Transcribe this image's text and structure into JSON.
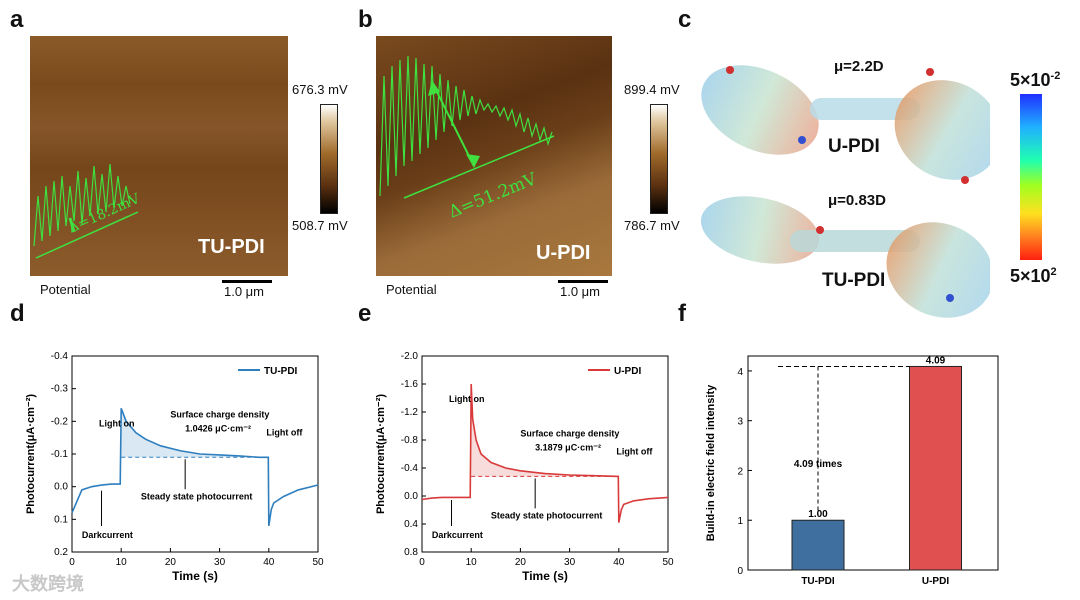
{
  "panels": {
    "a": "a",
    "b": "b",
    "c": "c",
    "d": "d",
    "e": "e",
    "f": "f"
  },
  "panel_a": {
    "sample": "TU-PDI",
    "delta": "Δ=18.2mV",
    "cbar_max": "676.3 mV",
    "cbar_min": "508.7 mV",
    "footer_left": "Potential",
    "scalebar": "1.0 μm",
    "colors": {
      "bg": "#7a4a1f",
      "dark": "#5a3412",
      "light": "#9a6a35"
    }
  },
  "panel_b": {
    "sample": "U-PDI",
    "delta": "Δ=51.2mV",
    "cbar_max": "899.4 mV",
    "cbar_min": "786.7 mV",
    "footer_left": "Potential",
    "scalebar": "1.0 μm"
  },
  "panel_c": {
    "top_dipole": "μ=2.2D",
    "top_name": "U-PDI",
    "bottom_dipole": "μ=0.83D",
    "bottom_name": "TU-PDI",
    "scale_top_base": "5×10",
    "scale_top_exp": "-2",
    "scale_bottom_base": "5×10",
    "scale_bottom_exp": "2"
  },
  "chart_data": [
    {
      "type": "line",
      "panel": "d",
      "legend": "TU-PDI",
      "color": "#2f7fbf",
      "xlabel": "Time (s)",
      "ylabel": "Photocurrent(μA·cm⁻²)",
      "xlim": [
        0,
        50
      ],
      "ylim": [
        0.2,
        -0.4
      ],
      "xticks": [
        "0",
        "10",
        "20",
        "30",
        "40",
        "50"
      ],
      "yticks": [
        "-0.4",
        "-0.3",
        "-0.2",
        "-0.1",
        "0.0",
        "0.1",
        "0.2"
      ],
      "x": [
        0,
        2,
        4,
        6,
        8,
        9.8,
        10,
        10.5,
        11,
        13,
        15,
        18,
        22,
        26,
        30,
        34,
        38,
        39.9,
        40,
        40.5,
        41,
        43,
        46,
        50
      ],
      "y": [
        0.08,
        0.01,
        0.0,
        -0.005,
        -0.008,
        -0.008,
        -0.24,
        -0.22,
        -0.2,
        -0.165,
        -0.145,
        -0.125,
        -0.11,
        -0.1,
        -0.097,
        -0.094,
        -0.09,
        -0.09,
        0.12,
        0.07,
        0.05,
        0.03,
        0.01,
        -0.005
      ],
      "annotations": {
        "light_on": "Light on",
        "light_off": "Light off",
        "surface": "Surface charge density",
        "surface_val": "1.0426 μC·cm⁻²",
        "steady": "Steady state photocurrent",
        "dark": "Darkcurrent"
      }
    },
    {
      "type": "line",
      "panel": "e",
      "legend": "U-PDI",
      "color": "#d83a3a",
      "xlabel": "Time (s)",
      "ylabel": "Photocurrent(μA·cm⁻²)",
      "xlim": [
        0,
        50
      ],
      "ylim": [
        0.8,
        -2.0
      ],
      "xticks": [
        "0",
        "10",
        "20",
        "30",
        "40",
        "50"
      ],
      "yticks": [
        "-2.0",
        "-1.6",
        "-1.2",
        "-0.8",
        "-0.4",
        "0.0",
        "0.4",
        "0.8"
      ],
      "x": [
        0,
        2,
        4,
        6,
        8,
        9.8,
        10,
        10.3,
        11,
        12,
        14,
        17,
        20,
        25,
        30,
        35,
        39.9,
        40,
        40.5,
        41,
        43,
        46,
        50
      ],
      "y": [
        0.05,
        0.03,
        0.02,
        0.02,
        0.02,
        0.02,
        -1.6,
        -1.1,
        -0.8,
        -0.6,
        -0.48,
        -0.4,
        -0.36,
        -0.32,
        -0.3,
        -0.29,
        -0.28,
        0.38,
        0.2,
        0.12,
        0.07,
        0.04,
        0.02
      ],
      "annotations": {
        "light_on": "Light on",
        "light_off": "Light off",
        "surface": "Surface charge density",
        "surface_val": "3.1879 μC·cm⁻²",
        "steady": "Steady state photocurrent",
        "dark": "Darkcurrent"
      }
    },
    {
      "type": "bar",
      "panel": "f",
      "categories": [
        "TU-PDI",
        "U-PDI"
      ],
      "values": [
        1.0,
        4.09
      ],
      "value_labels": [
        "1.00",
        "4.09"
      ],
      "colors": [
        "#3f6f9f",
        "#e05050"
      ],
      "ylabel": "Build-in electric field intensity",
      "ylim": [
        0,
        4.3
      ],
      "yticks": [
        "0",
        "1",
        "2",
        "3",
        "4"
      ],
      "annotation": "4.09 times"
    }
  ],
  "watermark": "大数跨境"
}
